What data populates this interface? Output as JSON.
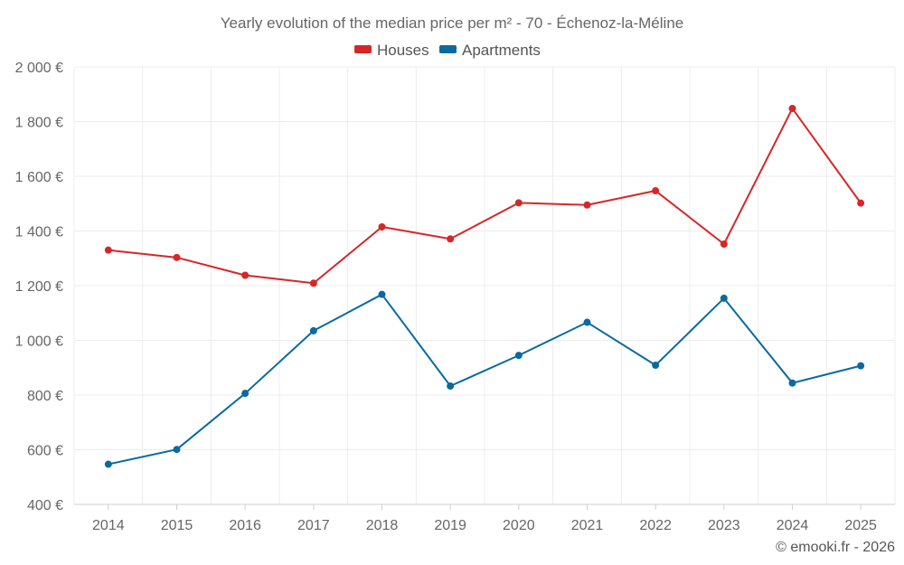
{
  "chart_data": {
    "type": "line",
    "title": "Yearly evolution of the median price per m² - 70 - Échenoz-la-Méline",
    "xlabel": "",
    "ylabel": "",
    "categories": [
      "2014",
      "2015",
      "2016",
      "2017",
      "2018",
      "2019",
      "2020",
      "2021",
      "2022",
      "2023",
      "2024",
      "2025"
    ],
    "ylim": [
      400,
      2000
    ],
    "yticks": [
      400,
      600,
      800,
      1000,
      1200,
      1400,
      1600,
      1800,
      2000
    ],
    "ytick_labels": [
      "400 €",
      "600 €",
      "800 €",
      "1 000 €",
      "1 200 €",
      "1 400 €",
      "1 600 €",
      "1 800 €",
      "2 000 €"
    ],
    "grid": true,
    "legend_position": "top-center",
    "series": [
      {
        "name": "Houses",
        "color": "#d62728",
        "values": [
          1330,
          1303,
          1238,
          1209,
          1415,
          1371,
          1503,
          1495,
          1547,
          1352,
          1848,
          1502
        ]
      },
      {
        "name": "Apartments",
        "color": "#0a6a9f",
        "values": [
          547,
          601,
          806,
          1035,
          1168,
          833,
          945,
          1066,
          909,
          1154,
          844,
          907
        ]
      }
    ]
  },
  "credit": "© emooki.fr - 2026"
}
